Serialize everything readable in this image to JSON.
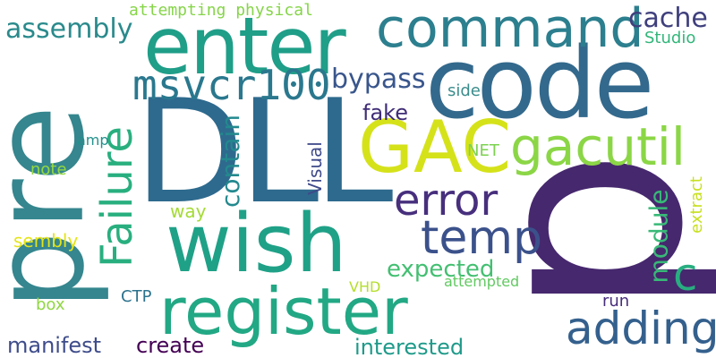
{
  "words": [
    {
      "text": "p",
      "color": "#46286e"
    },
    {
      "text": "DLL",
      "color": "#2e6a8e"
    },
    {
      "text": "code",
      "color": "#33698c"
    },
    {
      "text": "pre",
      "color": "#35868e"
    },
    {
      "text": "enter",
      "color": "#1f9e88"
    },
    {
      "text": "wish",
      "color": "#1fa187"
    },
    {
      "text": "register",
      "color": "#22a884"
    },
    {
      "text": "command",
      "color": "#2c7f8e"
    },
    {
      "text": "GAC",
      "color": "#d5e21a"
    },
    {
      "text": "gacutil",
      "color": "#8bd646"
    },
    {
      "text": "error",
      "color": "#472f7d"
    },
    {
      "text": "temp",
      "color": "#3b518b"
    },
    {
      "text": "msvcr100",
      "color": "#2a788e"
    },
    {
      "text": "Failure",
      "color": "#29af7f"
    },
    {
      "text": "adding",
      "color": "#34608d"
    },
    {
      "text": "assembly",
      "color": "#2a8a8c"
    },
    {
      "text": "cache",
      "color": "#3f3f7d"
    },
    {
      "text": "bypass",
      "color": "#39568c"
    },
    {
      "text": "fake",
      "color": "#3f2c76"
    },
    {
      "text": "contain",
      "color": "#23898e"
    },
    {
      "text": "module",
      "color": "#38b977"
    },
    {
      "text": "c",
      "color": "#28ae80"
    },
    {
      "text": "expected",
      "color": "#43bf71"
    },
    {
      "text": "attempting physical",
      "color": "#86d549"
    },
    {
      "text": "Studio",
      "color": "#32b67a"
    },
    {
      "text": "side",
      "color": "#3b8c8c"
    },
    {
      "text": "Visual",
      "color": "#3f4a8a"
    },
    {
      "text": "NET",
      "color": "#7cd250"
    },
    {
      "text": "amp",
      "color": "#21918c"
    },
    {
      "text": "note",
      "color": "#95d840"
    },
    {
      "text": "way",
      "color": "#a5db36"
    },
    {
      "text": "sembly",
      "color": "#e5e419"
    },
    {
      "text": "VHD",
      "color": "#b5de2b"
    },
    {
      "text": "attempted",
      "color": "#61c961"
    },
    {
      "text": "extract",
      "color": "#c8e020"
    },
    {
      "text": "box",
      "color": "#90d743"
    },
    {
      "text": "CTP",
      "color": "#2c738e"
    },
    {
      "text": "run",
      "color": "#472d7b"
    },
    {
      "text": "manifest",
      "color": "#3e4c8a"
    },
    {
      "text": "create",
      "color": "#440154"
    },
    {
      "text": "interested",
      "color": "#1f9a8a"
    }
  ]
}
